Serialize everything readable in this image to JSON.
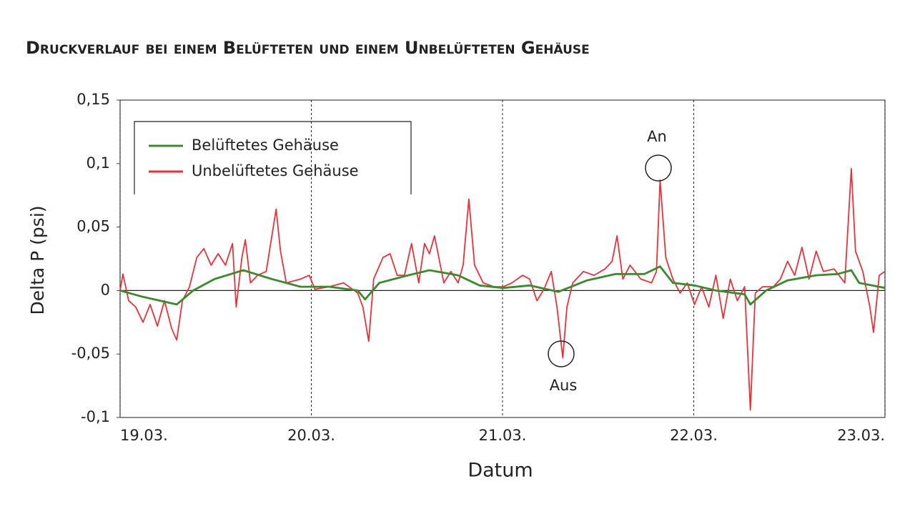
{
  "chart_data": {
    "type": "line",
    "title": "Druckverlauf bei einem Belüfteten und einem Unbelüfteten Gehäuse",
    "x_label": "Datum",
    "y_label": "Delta P (psi)",
    "xlim": [
      0,
      4
    ],
    "xticks": [
      {
        "value": 0,
        "label": "19.03."
      },
      {
        "value": 1,
        "label": "20.03."
      },
      {
        "value": 2,
        "label": "21.03."
      },
      {
        "value": 3,
        "label": "22.03."
      },
      {
        "value": 4,
        "label": "23.03."
      }
    ],
    "ylim": [
      -0.1,
      0.15
    ],
    "yticks": [
      {
        "value": -0.1,
        "label": "-0,1"
      },
      {
        "value": -0.05,
        "label": "-0,05"
      },
      0,
      {
        "value": 0.05,
        "label": "0,05"
      },
      {
        "value": 0.1,
        "label": "0,1"
      },
      {
        "value": 0.15,
        "label": "0,15"
      }
    ],
    "grid": true,
    "legend": "upper left",
    "annotations": [
      "An",
      "Aus"
    ],
    "series": [
      {
        "name": "Belüftetes Gehäuse",
        "color": "#3a8a2e",
        "x": [
          0,
          0.12,
          0.296,
          0.382,
          0.494,
          0.644,
          0.794,
          0.944,
          1.094,
          1.243,
          1.281,
          1.356,
          1.506,
          1.618,
          1.768,
          1.88,
          2.004,
          2.142,
          2.292,
          2.442,
          2.592,
          2.742,
          2.824,
          2.891,
          3.004,
          3.116,
          3.266,
          3.296,
          3.378,
          3.491,
          3.64,
          3.753,
          3.824,
          3.865,
          4.0
        ],
        "values": [
          0,
          -0.005,
          -0.011,
          0,
          0.009,
          0.016,
          0.009,
          0.003,
          0.003,
          0,
          -0.007,
          0.006,
          0.012,
          0.016,
          0.012,
          0.004,
          0.002,
          0.004,
          -0.001,
          0.008,
          0.013,
          0.013,
          0.019,
          0.006,
          0.004,
          0,
          -0.003,
          -0.011,
          0,
          0.008,
          0.012,
          0.013,
          0.016,
          0.006,
          0.002
        ]
      },
      {
        "name": "Unbelüftetes Gehäuse",
        "color": "#e8323a",
        "x": [
          0,
          0.015,
          0.045,
          0.082,
          0.12,
          0.157,
          0.195,
          0.232,
          0.27,
          0.296,
          0.326,
          0.363,
          0.401,
          0.438,
          0.476,
          0.513,
          0.551,
          0.588,
          0.607,
          0.637,
          0.655,
          0.682,
          0.719,
          0.764,
          0.816,
          0.839,
          0.869,
          0.944,
          0.989,
          1.019,
          1.094,
          1.169,
          1.243,
          1.27,
          1.3,
          1.326,
          1.375,
          1.412,
          1.449,
          1.487,
          1.524,
          1.562,
          1.592,
          1.618,
          1.644,
          1.667,
          1.693,
          1.73,
          1.768,
          1.794,
          1.824,
          1.854,
          1.899,
          1.955,
          2.004,
          2.049,
          2.105,
          2.142,
          2.18,
          2.217,
          2.255,
          2.285,
          2.315,
          2.337,
          2.367,
          2.423,
          2.479,
          2.536,
          2.573,
          2.599,
          2.629,
          2.667,
          2.723,
          2.779,
          2.805,
          2.824,
          2.854,
          2.891,
          2.929,
          2.966,
          3.004,
          3.041,
          3.079,
          3.116,
          3.154,
          3.191,
          3.228,
          3.266,
          3.296,
          3.322,
          3.36,
          3.416,
          3.453,
          3.491,
          3.528,
          3.566,
          3.603,
          3.64,
          3.678,
          3.734,
          3.79,
          3.824,
          3.846,
          3.884,
          3.921,
          3.94,
          3.97,
          4.0
        ],
        "values": [
          0,
          0.013,
          -0.008,
          -0.013,
          -0.025,
          -0.011,
          -0.028,
          -0.008,
          -0.03,
          -0.039,
          -0.008,
          0.003,
          0.026,
          0.033,
          0.02,
          0.029,
          0.02,
          0.037,
          -0.013,
          0.026,
          0.04,
          0.006,
          0.012,
          0.015,
          0.064,
          0.031,
          0.006,
          0.009,
          0.012,
          0.001,
          0.003,
          0.006,
          -0.002,
          -0.013,
          -0.04,
          0.009,
          0.026,
          0.029,
          0.012,
          0.012,
          0.037,
          0.006,
          0.037,
          0.029,
          0.043,
          0.026,
          0.006,
          0.015,
          0.006,
          0.02,
          0.072,
          0.02,
          0.006,
          0.003,
          0.003,
          0.006,
          0.012,
          0.009,
          -0.008,
          0.001,
          0.015,
          -0.013,
          -0.053,
          -0.013,
          0.006,
          0.015,
          0.012,
          0.017,
          0.023,
          0.043,
          0.009,
          0.02,
          0.009,
          0.006,
          0.015,
          0.087,
          0.026,
          0.009,
          -0.002,
          0.006,
          -0.011,
          0.003,
          -0.013,
          0.012,
          -0.022,
          0.009,
          -0.008,
          0.003,
          -0.094,
          -0.002,
          0.003,
          0.003,
          0.009,
          0.023,
          0.012,
          0.034,
          0.009,
          0.031,
          0.015,
          0.017,
          0.006,
          0.096,
          0.031,
          0.015,
          -0.013,
          -0.033,
          0.012,
          0.015
        ]
      }
    ]
  }
}
